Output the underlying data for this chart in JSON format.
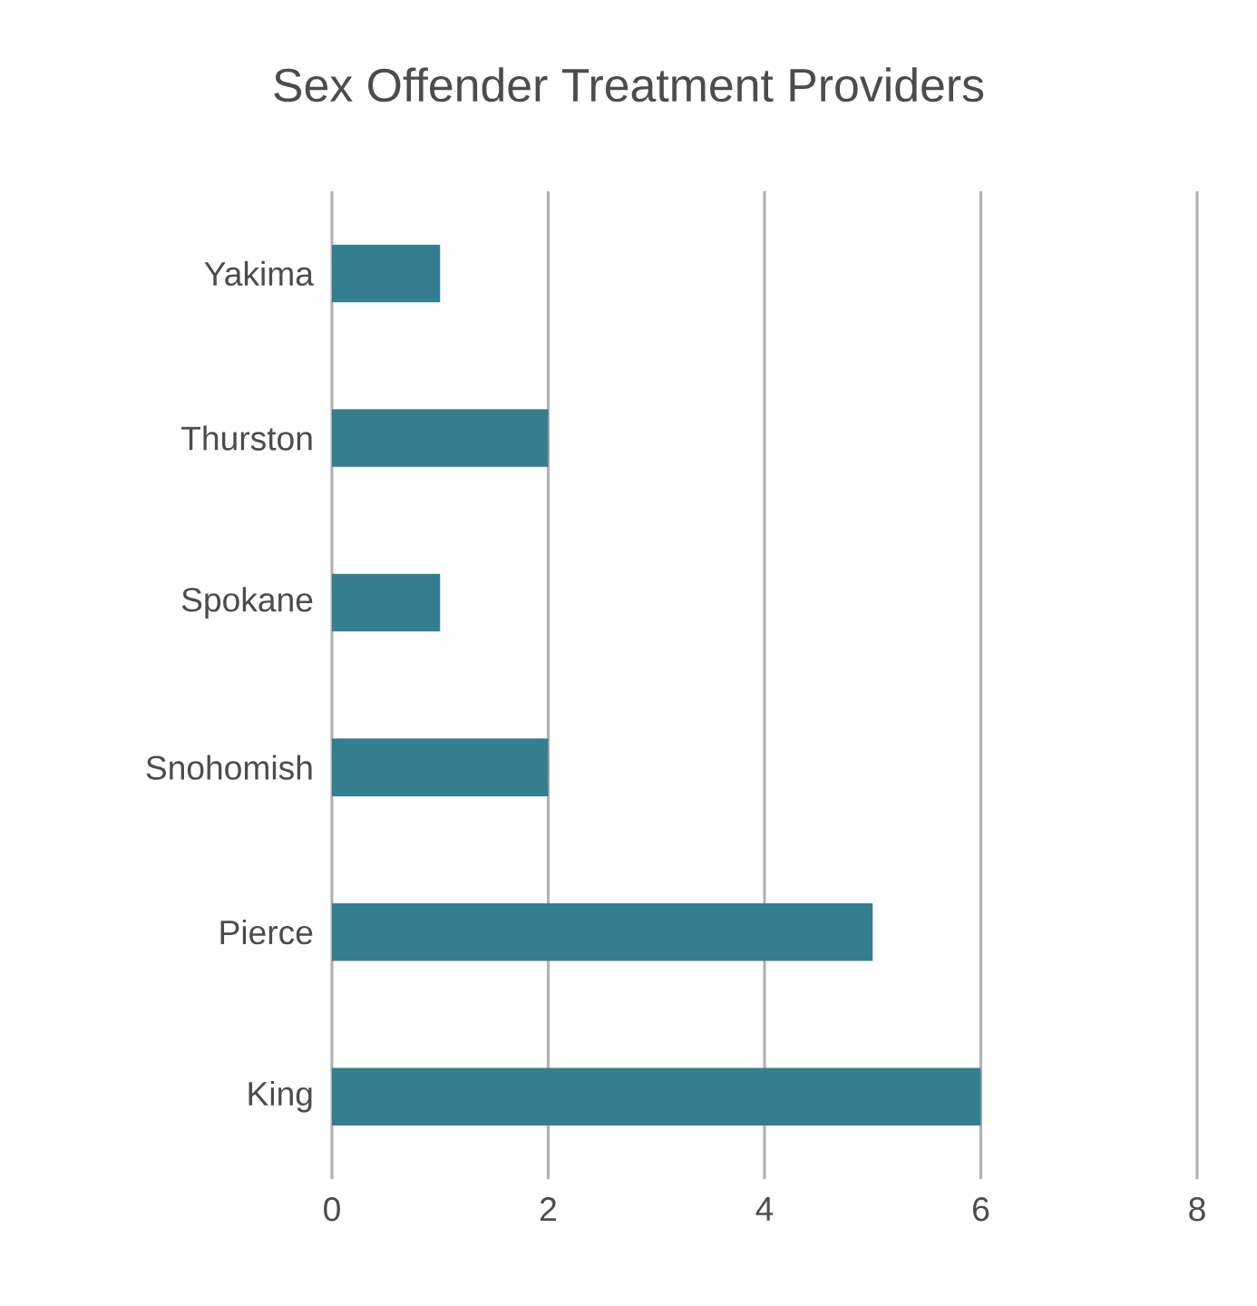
{
  "chart_data": {
    "type": "bar",
    "orientation": "horizontal",
    "title": "Sex Offender Treatment Providers",
    "categories": [
      "Yakima",
      "Thurston",
      "Spokane",
      "Snohomish",
      "Pierce",
      "King"
    ],
    "values": [
      1,
      2,
      1,
      2,
      5,
      6
    ],
    "color": "#357e90",
    "xlim": [
      0,
      8
    ],
    "xticks": [
      0,
      2,
      4,
      6,
      8
    ],
    "grid": "x"
  }
}
